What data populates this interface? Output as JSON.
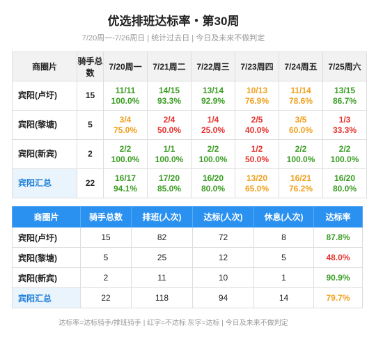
{
  "header": {
    "title": "优选排班达标率・第30周",
    "subtitle": "7/20周一-7/26周日 | 统计过去日 | 今日及未来不做判定"
  },
  "daily_table": {
    "columns": [
      "商圈片",
      "骑手总数",
      "7/20周一",
      "7/21周二",
      "7/22周三",
      "7/23周四",
      "7/24周五",
      "7/25周六"
    ],
    "rows": [
      {
        "area": "宾阳(卢圩)",
        "riders": "15",
        "cells": [
          {
            "ratio": "11/11",
            "rate": "100.0%",
            "color": "#3a9d23"
          },
          {
            "ratio": "14/15",
            "rate": "93.3%",
            "color": "#3a9d23"
          },
          {
            "ratio": "13/14",
            "rate": "92.9%",
            "color": "#3a9d23"
          },
          {
            "ratio": "10/13",
            "rate": "76.9%",
            "color": "#f0a01e"
          },
          {
            "ratio": "11/14",
            "rate": "78.6%",
            "color": "#f0a01e"
          },
          {
            "ratio": "13/15",
            "rate": "86.7%",
            "color": "#3a9d23"
          }
        ]
      },
      {
        "area": "宾阳(黎塘)",
        "riders": "5",
        "cells": [
          {
            "ratio": "3/4",
            "rate": "75.0%",
            "color": "#f0a01e"
          },
          {
            "ratio": "2/4",
            "rate": "50.0%",
            "color": "#e5322d"
          },
          {
            "ratio": "1/4",
            "rate": "25.0%",
            "color": "#e5322d"
          },
          {
            "ratio": "2/5",
            "rate": "40.0%",
            "color": "#e5322d"
          },
          {
            "ratio": "3/5",
            "rate": "60.0%",
            "color": "#f0a01e"
          },
          {
            "ratio": "1/3",
            "rate": "33.3%",
            "color": "#e5322d"
          }
        ]
      },
      {
        "area": "宾阳(新宾)",
        "riders": "2",
        "cells": [
          {
            "ratio": "2/2",
            "rate": "100.0%",
            "color": "#3a9d23"
          },
          {
            "ratio": "1/1",
            "rate": "100.0%",
            "color": "#3a9d23"
          },
          {
            "ratio": "2/2",
            "rate": "100.0%",
            "color": "#3a9d23"
          },
          {
            "ratio": "1/2",
            "rate": "50.0%",
            "color": "#e5322d"
          },
          {
            "ratio": "2/2",
            "rate": "100.0%",
            "color": "#3a9d23"
          },
          {
            "ratio": "2/2",
            "rate": "100.0%",
            "color": "#3a9d23"
          }
        ]
      },
      {
        "area": "宾阳汇总",
        "riders": "22",
        "cells": [
          {
            "ratio": "16/17",
            "rate": "94.1%",
            "color": "#3a9d23"
          },
          {
            "ratio": "17/20",
            "rate": "85.0%",
            "color": "#3a9d23"
          },
          {
            "ratio": "16/20",
            "rate": "80.0%",
            "color": "#3a9d23"
          },
          {
            "ratio": "13/20",
            "rate": "65.0%",
            "color": "#f0a01e"
          },
          {
            "ratio": "16/21",
            "rate": "76.2%",
            "color": "#f0a01e"
          },
          {
            "ratio": "16/20",
            "rate": "80.0%",
            "color": "#3a9d23"
          }
        ]
      }
    ]
  },
  "summary_table": {
    "columns": [
      "商圈片",
      "骑手总数",
      "排班(人次)",
      "达标(人次)",
      "休息(人次)",
      "达标率"
    ],
    "rows": [
      {
        "cells": [
          "宾阳(卢圩)",
          "15",
          "82",
          "72",
          "8",
          "87.8%"
        ],
        "color": "#3a9d23"
      },
      {
        "cells": [
          "宾阳(黎塘)",
          "5",
          "25",
          "12",
          "5",
          "48.0%"
        ],
        "color": "#e5322d"
      },
      {
        "cells": [
          "宾阳(新宾)",
          "2",
          "11",
          "10",
          "1",
          "90.9%"
        ],
        "color": "#3a9d23"
      },
      {
        "cells": [
          "宾阳汇总",
          "22",
          "118",
          "94",
          "14",
          "79.7%"
        ],
        "color": "#f0a01e"
      }
    ]
  },
  "footer": "达标率=达标骑手/排班骑手 | 红字=不达标 灰字=达标 | 今日及未来不做判定"
}
